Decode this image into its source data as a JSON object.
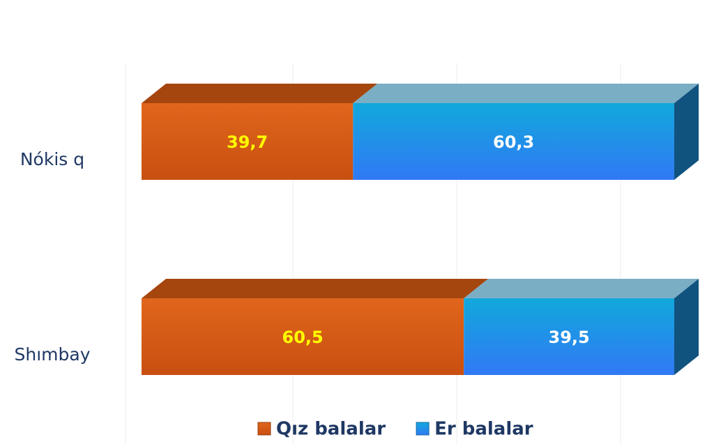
{
  "chart_data": {
    "type": "stacked_bar_horizontal",
    "categories": [
      "Nókis q",
      "Shımbay"
    ],
    "series": [
      {
        "name": "Qız balalar",
        "color": "#d95a14",
        "label_color": "#ffff00",
        "values": [
          39.7,
          60.5
        ],
        "value_labels": [
          "39,7",
          "60,5"
        ]
      },
      {
        "name": "Er balalar",
        "color": "#1f96e6",
        "label_color": "#ffffff",
        "values": [
          60.3,
          39.5
        ],
        "value_labels": [
          "60,3",
          "39,5"
        ]
      }
    ],
    "legend": "bottom"
  }
}
